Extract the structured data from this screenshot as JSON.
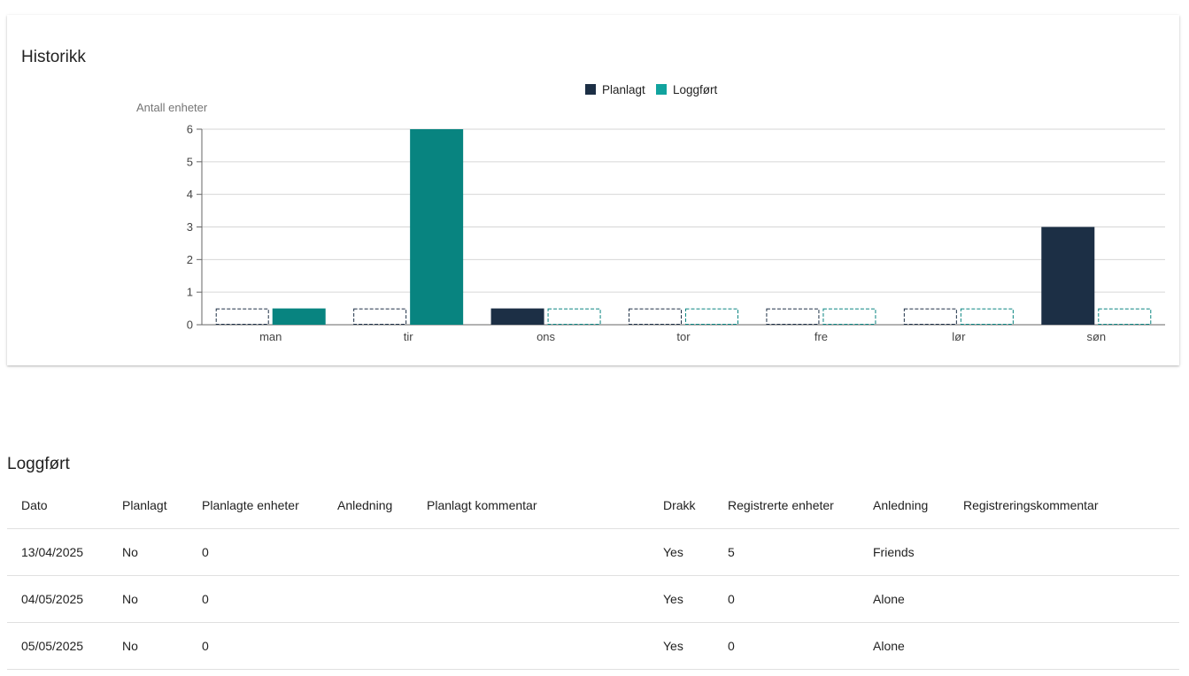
{
  "history": {
    "title": "Historikk"
  },
  "chart_data": {
    "type": "bar",
    "ylabel": "Antall enheter",
    "xlabel": "",
    "ylim": [
      0,
      6
    ],
    "yticks": [
      0,
      1,
      2,
      3,
      4,
      5,
      6
    ],
    "categories": [
      "man",
      "tir",
      "ons",
      "tor",
      "fre",
      "lør",
      "søn"
    ],
    "legend_position": "top",
    "grid": true,
    "series": [
      {
        "name": "Planlagt",
        "color": "#1c2f45",
        "values": [
          0,
          0,
          0.5,
          0,
          0,
          0,
          3
        ]
      },
      {
        "name": "Loggført",
        "color": "#088480",
        "legend_color": "#11a39e",
        "values": [
          0.5,
          6,
          0,
          0,
          0,
          0,
          0
        ]
      }
    ]
  },
  "log": {
    "title": "Loggført",
    "columns": [
      "Dato",
      "Planlagt",
      "Planlagte enheter",
      "Anledning",
      "Planlagt kommentar",
      "Drakk",
      "Registrerte enheter",
      "Anledning",
      "Registreringskommentar"
    ],
    "rows": [
      [
        "13/04/2025",
        "No",
        "0",
        "",
        "",
        "Yes",
        "5",
        "Friends",
        ""
      ],
      [
        "04/05/2025",
        "No",
        "0",
        "",
        "",
        "Yes",
        "0",
        "Alone",
        ""
      ],
      [
        "05/05/2025",
        "No",
        "0",
        "",
        "",
        "Yes",
        "0",
        "Alone",
        ""
      ]
    ]
  }
}
